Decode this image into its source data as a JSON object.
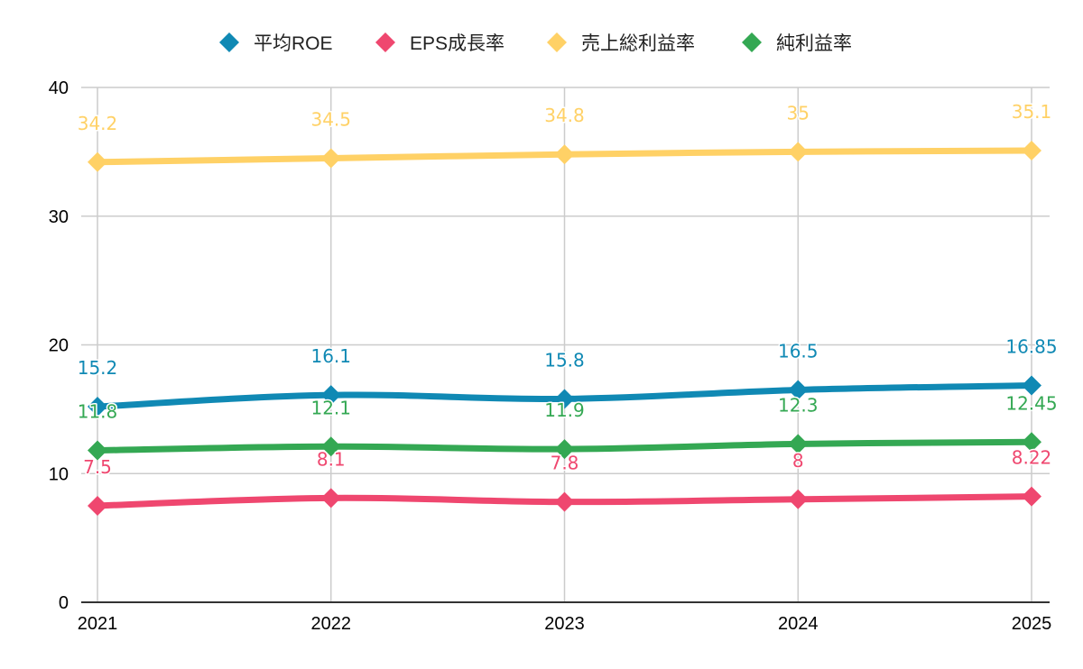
{
  "chart_data": {
    "type": "line",
    "title": "",
    "xlabel": "",
    "ylabel": "",
    "categories": [
      "2021",
      "2022",
      "2023",
      "2024",
      "2025"
    ],
    "ylim": [
      0,
      40
    ],
    "yticks": [
      0,
      10,
      20,
      30,
      40
    ],
    "grid": true,
    "legend_position": "top-center",
    "smooth": true,
    "marker": "diamond",
    "series": [
      {
        "name": "平均ROE",
        "color": "#1089b4",
        "values": [
          15.2,
          16.1,
          15.8,
          16.5,
          16.85
        ],
        "labels": [
          "15.2",
          "16.1",
          "15.8",
          "16.5",
          "16.85"
        ]
      },
      {
        "name": "EPS成長率",
        "color": "#ef476f",
        "values": [
          7.5,
          8.1,
          7.8,
          8,
          8.22
        ],
        "labels": [
          "7.5",
          "8.1",
          "7.8",
          "8",
          "8.22"
        ]
      },
      {
        "name": "売上総利益率",
        "color": "#ffd166",
        "values": [
          34.2,
          34.5,
          34.8,
          35,
          35.1
        ],
        "labels": [
          "34.2",
          "34.5",
          "34.8",
          "35",
          "35.1"
        ]
      },
      {
        "name": "純利益率",
        "color": "#34a853",
        "values": [
          11.8,
          12.1,
          11.9,
          12.3,
          12.45
        ],
        "labels": [
          "11.8",
          "12.1",
          "11.9",
          "12.3",
          "12.45"
        ]
      }
    ]
  }
}
